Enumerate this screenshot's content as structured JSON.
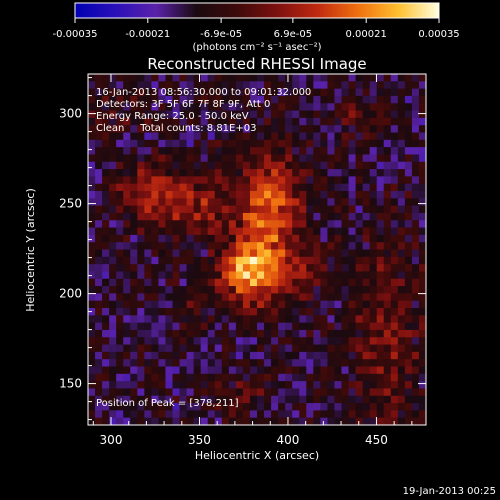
{
  "chart_data": {
    "type": "heatmap",
    "title": "Reconstructed RHESSI Image",
    "xlabel": "Heliocentric X (arcsec)",
    "ylabel": "Heliocentric Y (arcsec)",
    "xlim": [
      287,
      478
    ],
    "ylim": [
      127,
      322
    ],
    "xticks": [
      "300",
      "350",
      "400",
      "450"
    ],
    "xtick_values": [
      300,
      350,
      400,
      450
    ],
    "yticks": [
      "150",
      "200",
      "250",
      "300"
    ],
    "ytick_values": [
      150,
      200,
      250,
      300
    ],
    "colorbar": {
      "range": [
        -0.00035,
        0.00035
      ],
      "tick_labels": [
        "-0.00035",
        "-0.00021",
        "-6.9e-05",
        "6.9e-05",
        "0.00021",
        "0.00035"
      ],
      "unit_label": "(photons cm⁻² s⁻¹ asec⁻²)",
      "colors": [
        "#0000b4",
        "#2a10b8",
        "#5a22aa",
        "#1a0a10",
        "#3d0a0a",
        "#7d1010",
        "#c02a10",
        "#f07010",
        "#ffc030",
        "#ffffe0"
      ]
    },
    "annotations": [
      "16-Jan-2013 08:56:30.000 to 09:01:32.000",
      "Detectors: 3F 5F 6F 7F 8F 9F, Att 0",
      "Energy Range: 25.0 - 50.0 keV",
      "Clean     Total counts: 8.81E+03"
    ],
    "peak_label": "Position of Peak = [378,211]",
    "peak": [
      378,
      211
    ],
    "sources": [
      {
        "x": 378,
        "y": 211,
        "amp": 0.00035,
        "sx": 11,
        "sy": 12
      },
      {
        "x": 390,
        "y": 245,
        "amp": 0.00028,
        "sx": 12,
        "sy": 22
      },
      {
        "x": 345,
        "y": 250,
        "amp": 0.00018,
        "sx": 20,
        "sy": 12
      },
      {
        "x": 320,
        "y": 258,
        "amp": 0.00013,
        "sx": 12,
        "sy": 10
      },
      {
        "x": 408,
        "y": 210,
        "amp": 0.00011,
        "sx": 9,
        "sy": 12
      },
      {
        "x": 455,
        "y": 175,
        "amp": 0.00014,
        "sx": 14,
        "sy": 38
      },
      {
        "x": 440,
        "y": 300,
        "amp": 9e-05,
        "sx": 10,
        "sy": 10
      },
      {
        "x": 300,
        "y": 300,
        "amp": 8e-05,
        "sx": 12,
        "sy": 10
      },
      {
        "x": 372,
        "y": 145,
        "amp": 8e-05,
        "sx": 12,
        "sy": 10
      },
      {
        "x": 350,
        "y": 195,
        "amp": 7e-05,
        "sx": 8,
        "sy": 8
      }
    ],
    "background_level": -0.00012,
    "grid": false
  },
  "footer": {
    "date": "19-Jan-2013 00:25"
  }
}
